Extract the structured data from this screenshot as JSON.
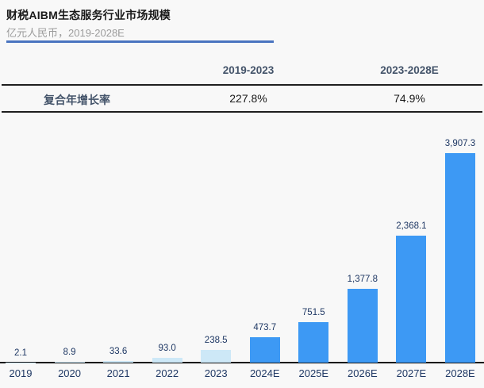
{
  "header": {
    "title": "财税AIBM生态服务行业市场规模",
    "subtitle": "亿元人民币，2019-2028E"
  },
  "cagr_table": {
    "columns": [
      "2019-2023",
      "2023-2028E"
    ],
    "row_label": "复合年增长率",
    "values": [
      "227.8%",
      "74.9%"
    ]
  },
  "chart_data": {
    "type": "bar",
    "title": "财税AIBM生态服务行业市场规模",
    "ylabel": "亿元人民币",
    "categories": [
      "2019",
      "2020",
      "2021",
      "2022",
      "2023",
      "2024E",
      "2025E",
      "2026E",
      "2027E",
      "2028E"
    ],
    "values": [
      2.1,
      8.9,
      33.6,
      93.0,
      238.5,
      473.7,
      751.5,
      1377.8,
      2368.1,
      3907.3
    ],
    "value_labels": [
      "2.1",
      "8.9",
      "33.6",
      "93.0",
      "238.5",
      "473.7",
      "751.5",
      "1,377.8",
      "2,368.1",
      "3,907.3"
    ],
    "ylim": [
      0,
      3907.3
    ],
    "grid": false,
    "legend": "none",
    "historical_count": 5,
    "historical_color": "#cde8f7",
    "forecast_color": "#3d99f4"
  },
  "colors": {
    "accent_underline": "#4a74c0",
    "table_header_text": "#44546a",
    "bar_label_text": "#1f3864",
    "background": "#f8f8f8"
  }
}
